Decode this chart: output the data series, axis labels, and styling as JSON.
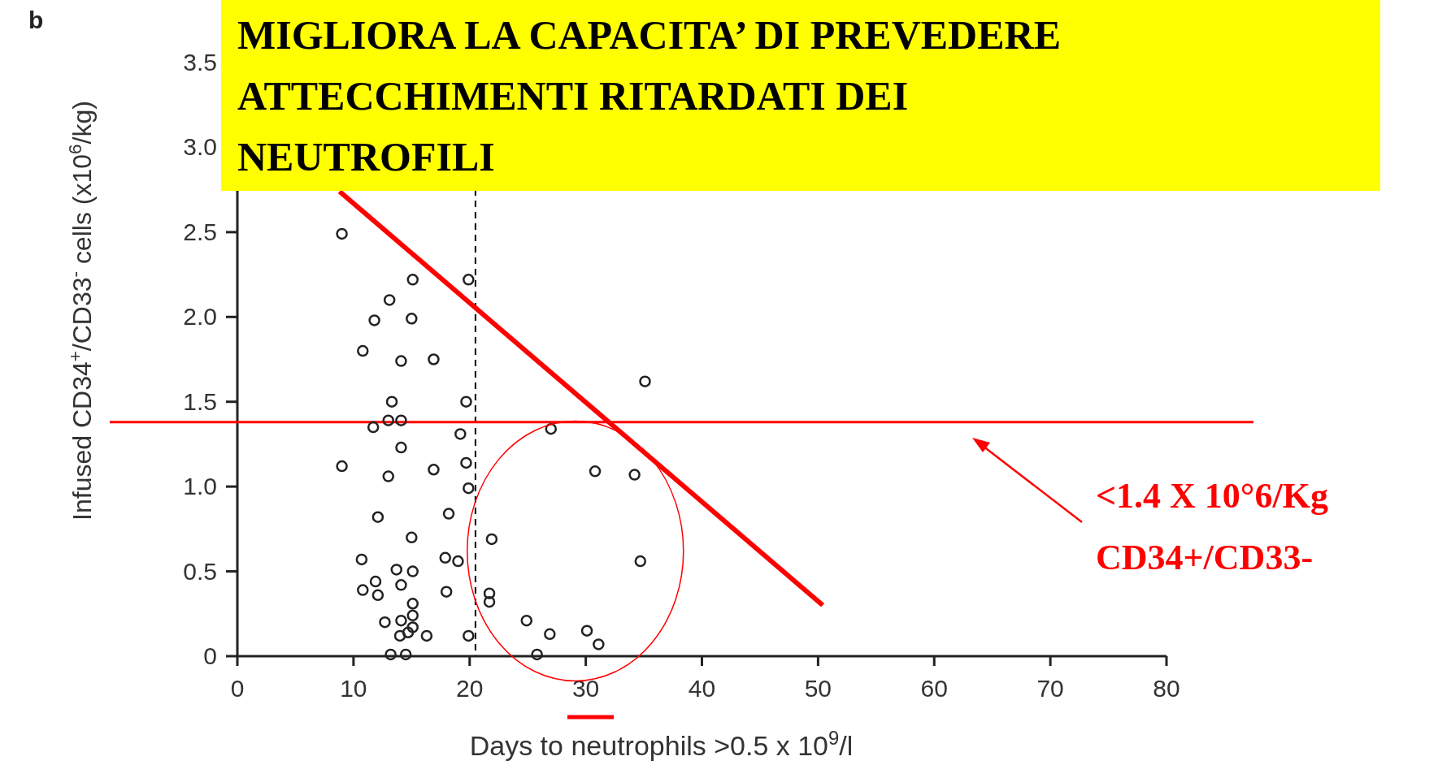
{
  "chart_data": {
    "type": "scatter",
    "title": "MIGLIORA LA CAPACITA’ DI PREVEDERE ATTECCHIMENTI RITARDATI  DEI NEUTROFILI",
    "xlabel": "Days to neutrophils >0.5 x 10$^{9}$/l",
    "ylabel": "Infused CD34$^{+}$/CD33$^{-}$ cells (x10$^{6}$/kg)",
    "annotations": [
      "b"
    ],
    "xlim": [
      0,
      80
    ],
    "ylim": [
      0,
      3.5
    ],
    "xticks": [
      0,
      10,
      20,
      30,
      40,
      50,
      60,
      70,
      80
    ],
    "yticks": [
      0,
      {
        "value": 0.5,
        "label": "0.5"
      },
      {
        "value": 1,
        "label": "1.0"
      },
      {
        "value": 1.5,
        "label": "1.5"
      },
      {
        "value": 2,
        "label": "2.0"
      },
      {
        "value": 2.5,
        "label": "2.5"
      },
      {
        "value": 3,
        "label": "3.0"
      },
      {
        "value": 3.5,
        "label": "3.5"
      }
    ],
    "marker": "circle",
    "ref_lines": [
      {
        "axis": "x",
        "value": 20.5,
        "line_style": "dashed",
        "color": "#000000"
      },
      {
        "axis": "y",
        "value": 1.38,
        "color": "#ff0000",
        "label": "<1.4 X 10°6/Kg CD34+/CD33-"
      }
    ],
    "series": [
      {
        "color": "#222222",
        "x": [
          9.0,
          15.1,
          19.9,
          13.1,
          11.8,
          15.0,
          10.8,
          14.1,
          16.9,
          35.1,
          13.3,
          19.7,
          11.7,
          13.0,
          14.1,
          19.2,
          27.0,
          14.1,
          9.0,
          13.0,
          16.9,
          19.7,
          19.9,
          30.8,
          34.2,
          12.1,
          18.2,
          21.9,
          15.0,
          10.7,
          17.9,
          19.0,
          34.7,
          13.7,
          15.1,
          11.9,
          14.1,
          10.8,
          12.1,
          18.0,
          21.7,
          21.7,
          15.1,
          12.7,
          14.1,
          15.1,
          15.1,
          24.9,
          14.0,
          14.7,
          16.3,
          19.9,
          26.9,
          30.1,
          31.1,
          13.2,
          14.5,
          25.8
        ],
        "values": [
          2.49,
          2.22,
          2.22,
          2.1,
          1.98,
          1.99,
          1.8,
          1.74,
          1.75,
          1.62,
          1.5,
          1.5,
          1.35,
          1.39,
          1.39,
          1.31,
          1.34,
          1.23,
          1.12,
          1.06,
          1.1,
          1.14,
          0.99,
          1.09,
          1.07,
          0.82,
          0.84,
          0.69,
          0.7,
          0.57,
          0.58,
          0.56,
          0.56,
          0.51,
          0.5,
          0.44,
          0.42,
          0.39,
          0.36,
          0.38,
          0.37,
          0.32,
          0.31,
          0.2,
          0.21,
          0.24,
          0.17,
          0.21,
          0.12,
          0.14,
          0.12,
          0.12,
          0.13,
          0.15,
          0.07,
          0.01,
          0.01,
          0.01
        ]
      },
      {
        "type": "line",
        "marker": "none",
        "color": "#ff0000",
        "x": [
          8.8,
          50.4
        ],
        "values": [
          2.74,
          0.3
        ]
      }
    ]
  }
}
